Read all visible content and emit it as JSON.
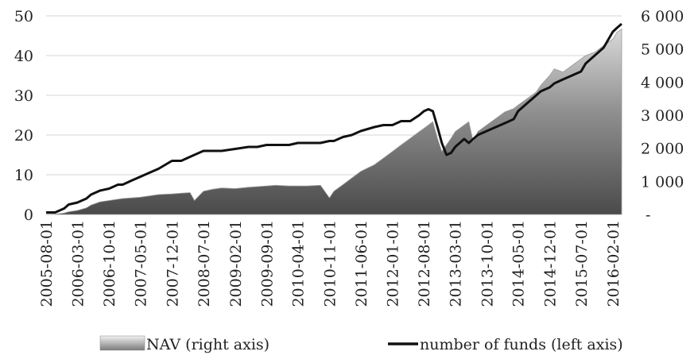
{
  "chart_data": {
    "type": "area",
    "title": "",
    "x_dates": [
      "2005-08-01",
      "2005-10-01",
      "2005-12-01",
      "2006-01-01",
      "2006-03-01",
      "2006-05-01",
      "2006-06-01",
      "2006-08-01",
      "2006-10-01",
      "2006-12-01",
      "2007-01-01",
      "2007-03-01",
      "2007-05-01",
      "2007-07-01",
      "2007-09-01",
      "2007-12-01",
      "2008-02-01",
      "2008-04-01",
      "2008-05-01",
      "2008-07-01",
      "2008-09-01",
      "2008-11-01",
      "2009-02-01",
      "2009-05-01",
      "2009-07-01",
      "2009-09-01",
      "2009-11-01",
      "2010-02-01",
      "2010-04-01",
      "2010-06-01",
      "2010-09-01",
      "2010-11-01",
      "2010-12-01",
      "2011-02-01",
      "2011-04-01",
      "2011-06-01",
      "2011-09-01",
      "2011-11-01",
      "2012-01-01",
      "2012-03-01",
      "2012-05-01",
      "2012-07-01",
      "2012-08-01",
      "2012-09-01",
      "2012-10-01",
      "2012-11-01",
      "2012-12-01",
      "2013-01-01",
      "2013-02-01",
      "2013-03-01",
      "2013-05-01",
      "2013-06-01",
      "2013-07-01",
      "2013-08-01",
      "2013-10-01",
      "2013-12-01",
      "2014-02-01",
      "2014-04-01",
      "2014-05-01",
      "2014-07-01",
      "2014-09-01",
      "2014-10-01",
      "2014-12-01",
      "2015-01-01",
      "2015-03-01",
      "2015-05-01",
      "2015-07-01",
      "2015-08-01",
      "2015-10-01",
      "2015-12-01",
      "2016-01-01",
      "2016-02-01",
      "2016-03-01",
      "2016-04-01"
    ],
    "x_tick_labels": [
      "2005-08-01",
      "2006-03-01",
      "2006-10-01",
      "2007-05-01",
      "2007-12-01",
      "2008-07-01",
      "2009-02-01",
      "2009-09-01",
      "2010-04-01",
      "2010-11-01",
      "2011-06-01",
      "2012-01-01",
      "2012-08-01",
      "2013-03-01",
      "2013-10-01",
      "2014-05-01",
      "2014-12-01",
      "2015-07-01",
      "2016-02-01"
    ],
    "series": [
      {
        "name": "number of funds (left axis)",
        "axis": "left",
        "style": "line",
        "color": "#111111",
        "values": [
          0.5,
          0.5,
          1.5,
          2.5,
          3,
          4,
          5,
          6,
          6.5,
          7.5,
          7.5,
          8.5,
          9.5,
          10.5,
          11.5,
          13.5,
          13.5,
          14.5,
          15,
          16,
          16,
          16,
          16.5,
          17,
          17,
          17.5,
          17.5,
          17.5,
          18,
          18,
          18,
          18.5,
          18.5,
          19.5,
          20,
          21,
          22,
          22.5,
          22.5,
          23.5,
          23.5,
          25,
          26,
          26.5,
          26,
          22,
          18,
          15,
          15.5,
          17,
          19,
          18,
          19,
          20,
          21,
          22,
          23,
          24,
          26,
          28,
          30,
          31,
          32,
          33,
          34,
          35,
          36,
          38,
          40,
          42,
          44,
          46,
          47,
          48
        ]
      },
      {
        "name": "NAV (right axis)",
        "axis": "right",
        "style": "area",
        "color": "#7a7a7a",
        "values": [
          0,
          10,
          40,
          80,
          120,
          200,
          280,
          380,
          420,
          460,
          480,
          500,
          520,
          560,
          600,
          620,
          640,
          660,
          420,
          700,
          760,
          800,
          780,
          820,
          840,
          860,
          880,
          860,
          860,
          860,
          880,
          500,
          700,
          900,
          1100,
          1300,
          1500,
          1700,
          1900,
          2100,
          2300,
          2500,
          2600,
          2700,
          2800,
          2300,
          1900,
          2100,
          2300,
          2500,
          2700,
          2800,
          2200,
          2500,
          2700,
          2900,
          3100,
          3200,
          3300,
          3500,
          3700,
          3900,
          4200,
          4400,
          4300,
          4500,
          4700,
          4800,
          4900,
          5100,
          5200,
          5300,
          5500,
          5600
        ]
      }
    ],
    "left_axis": {
      "ylim": [
        0,
        50
      ],
      "ticks": [
        "0",
        "10",
        "20",
        "30",
        "40",
        "50"
      ]
    },
    "right_axis": {
      "ylim": [
        0,
        6000
      ],
      "ticks": [
        "-",
        "1 000",
        "2 000",
        "3 000",
        "4 000",
        "5 000",
        "6 000"
      ]
    },
    "grid": "horizontal",
    "legend": {
      "position": "bottom",
      "items": [
        "NAV (right axis)",
        "number of funds (left axis)"
      ]
    }
  }
}
